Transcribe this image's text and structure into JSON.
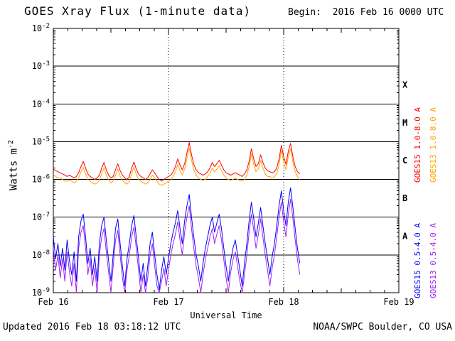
{
  "header": {
    "title": "GOES Xray Flux (1-minute data)",
    "begin_label": "Begin:  2016 Feb 16 0000 UTC"
  },
  "footer": {
    "updated": "Updated 2016 Feb 18 03:18:12 UTC",
    "source": "NOAA/SWPC Boulder, CO USA"
  },
  "chart_data": {
    "type": "line",
    "title": "GOES Xray Flux (1-minute data)",
    "xlabel": "Universal Time",
    "ylabel": "Watts m^-2",
    "ylabel_base": "Watts m",
    "ylabel_exp": "-2",
    "x_axis": {
      "days": [
        "Feb 16",
        "Feb 17",
        "Feb 18",
        "Feb 19"
      ],
      "range_days": [
        0,
        3
      ],
      "start_label": "2016 Feb 16 0000 UTC"
    },
    "y_axis": {
      "scale": "log",
      "units": "Watts m^-2",
      "exponents": [
        -2,
        -3,
        -4,
        -5,
        -6,
        -7,
        -8,
        -9
      ]
    },
    "flare_classes": [
      {
        "label": "X",
        "log_center": -3.5
      },
      {
        "label": "M",
        "log_center": -4.5
      },
      {
        "label": "C",
        "log_center": -5.5
      },
      {
        "label": "B",
        "log_center": -6.5
      },
      {
        "label": "A",
        "log_center": -7.5
      }
    ],
    "legend": [
      {
        "label": "GOES15 1.0-8.0 A",
        "color": "#ff0000"
      },
      {
        "label": "GOES13 1.0-8.0 A",
        "color": "#ffa500"
      },
      {
        "label": "GOES15 0.5-4.0 A",
        "color": "#0000ff"
      },
      {
        "label": "GOES13 0.5-4.0 A",
        "color": "#a020f0"
      }
    ],
    "series": [
      {
        "name": "GOES13 1.0-8.0 A",
        "color": "#ffa500",
        "x_start_days": 0,
        "x_step_days": 0.02,
        "values": [
          1.4e-06,
          1.2e-06,
          1.1e-06,
          1.1e-06,
          1e-06,
          9e-07,
          9e-07,
          9.5e-07,
          9e-07,
          8e-07,
          9e-07,
          1.1e-06,
          1.6e-06,
          2.1e-06,
          1.4e-06,
          1e-06,
          9e-07,
          8e-07,
          7.5e-07,
          8e-07,
          9.5e-07,
          1.4e-06,
          2e-06,
          1.3e-06,
          9.5e-07,
          8e-07,
          9e-07,
          1.3e-06,
          1.9e-06,
          1.2e-06,
          9.5e-07,
          8e-07,
          7.5e-07,
          9e-07,
          1.4e-06,
          2.1e-06,
          1.4e-06,
          1e-06,
          9e-07,
          8e-07,
          7.5e-07,
          8e-07,
          1e-06,
          1.3e-06,
          1.1e-06,
          9e-07,
          7.5e-07,
          7e-07,
          7.5e-07,
          8e-07,
          9e-07,
          9.5e-07,
          1.2e-06,
          1.6e-06,
          2.5e-06,
          1.7e-06,
          1.3e-06,
          1.9e-06,
          3.6e-06,
          6.8e-06,
          3.2e-06,
          1.8e-06,
          1.3e-06,
          1.1e-06,
          1e-06,
          9.5e-07,
          1e-06,
          1.2e-06,
          1.4e-06,
          2e-06,
          1.6e-06,
          1.9e-06,
          2.3e-06,
          1.7e-06,
          1.3e-06,
          1.1e-06,
          1e-06,
          9.5e-07,
          1e-06,
          1.1e-06,
          1e-06,
          9.5e-07,
          9e-07,
          1e-06,
          1.3e-06,
          2.2e-06,
          4.7e-06,
          2.5e-06,
          1.6e-06,
          1.9e-06,
          3.2e-06,
          2e-06,
          1.4e-06,
          1.2e-06,
          1.2e-06,
          1.1e-06,
          1.2e-06,
          1.4e-06,
          2.5e-06,
          5.8e-06,
          2.9e-06,
          1.8e-06,
          4e-06,
          6.5e-06,
          2.9e-06,
          1.6e-06,
          1.2e-06,
          1e-06
        ]
      },
      {
        "name": "GOES13 0.5-4.0 A",
        "color": "#a020f0",
        "x_start_days": 0,
        "x_step_days": 0.02,
        "values": [
          1.5e-08,
          4e-09,
          1e-08,
          2.5e-09,
          8e-09,
          2e-09,
          1.2e-08,
          3.5e-09,
          1.5e-09,
          6e-09,
          1e-09,
          1.5e-08,
          4e-08,
          6e-08,
          1.5e-08,
          3e-09,
          8e-09,
          1.5e-09,
          4.5e-09,
          1e-09,
          1e-08,
          3e-08,
          5e-08,
          1.2e-08,
          3.5e-09,
          1e-09,
          5e-09,
          2.5e-08,
          4.5e-08,
          1e-08,
          2.5e-09,
          1e-09,
          4e-09,
          1e-08,
          3e-08,
          5.5e-08,
          1.5e-08,
          4e-09,
          1e-09,
          3e-09,
          1e-09,
          2.5e-09,
          1e-08,
          2e-08,
          5e-09,
          1.5e-09,
          1e-09,
          2e-09,
          4.5e-09,
          1.5e-09,
          4e-09,
          1e-08,
          2e-08,
          3.5e-08,
          7.5e-08,
          2.5e-08,
          1e-08,
          4e-08,
          1e-07,
          2e-07,
          5e-08,
          1.5e-08,
          5e-09,
          2.5e-09,
          1e-09,
          3e-09,
          7.5e-09,
          1.5e-08,
          3e-08,
          5e-08,
          2e-08,
          3.5e-08,
          6e-08,
          2.5e-08,
          7.5e-09,
          2.5e-09,
          1e-09,
          3.5e-09,
          7.5e-09,
          1.2e-08,
          5e-09,
          2e-09,
          1e-09,
          3e-09,
          1e-08,
          4e-08,
          1.2e-07,
          4.5e-08,
          1.5e-08,
          3.5e-08,
          9e-08,
          3e-08,
          1e-08,
          4e-09,
          1.5e-09,
          4.5e-09,
          1e-08,
          3e-08,
          1e-07,
          2.5e-07,
          7.5e-08,
          3e-08,
          1.2e-07,
          3e-07,
          9e-08,
          2.5e-08,
          7.5e-09,
          3e-09
        ]
      },
      {
        "name": "GOES15 1.0-8.0 A",
        "color": "#ff0000",
        "x_start_days": 0,
        "x_step_days": 0.02,
        "values": [
          1.9e-06,
          1.7e-06,
          1.6e-06,
          1.5e-06,
          1.4e-06,
          1.3e-06,
          1.2e-06,
          1.3e-06,
          1.2e-06,
          1.1e-06,
          1.2e-06,
          1.5e-06,
          2.2e-06,
          3e-06,
          2e-06,
          1.4e-06,
          1.2e-06,
          1.1e-06,
          1e-06,
          1.1e-06,
          1.3e-06,
          2e-06,
          2.8e-06,
          1.8e-06,
          1.3e-06,
          1.1e-06,
          1.2e-06,
          1.8e-06,
          2.6e-06,
          1.7e-06,
          1.3e-06,
          1.1e-06,
          1e-06,
          1.2e-06,
          2e-06,
          2.9e-06,
          1.9e-06,
          1.4e-06,
          1.2e-06,
          1.1e-06,
          1e-06,
          1.1e-06,
          1.4e-06,
          1.8e-06,
          1.5e-06,
          1.2e-06,
          1e-06,
          9e-07,
          1e-06,
          1.1e-06,
          1.2e-06,
          1.3e-06,
          1.6e-06,
          2.2e-06,
          3.5e-06,
          2.4e-06,
          1.8e-06,
          2.6e-06,
          5e-06,
          9.5e-06,
          4.5e-06,
          2.5e-06,
          1.8e-06,
          1.5e-06,
          1.4e-06,
          1.3e-06,
          1.4e-06,
          1.6e-06,
          2e-06,
          2.8e-06,
          2.2e-06,
          2.6e-06,
          3.2e-06,
          2.4e-06,
          1.8e-06,
          1.5e-06,
          1.4e-06,
          1.3e-06,
          1.4e-06,
          1.5e-06,
          1.4e-06,
          1.3e-06,
          1.2e-06,
          1.4e-06,
          1.8e-06,
          3e-06,
          6.5e-06,
          3.5e-06,
          2.2e-06,
          2.6e-06,
          4.5e-06,
          2.8e-06,
          2e-06,
          1.7e-06,
          1.6e-06,
          1.5e-06,
          1.6e-06,
          2e-06,
          3.5e-06,
          8e-06,
          4e-06,
          2.5e-06,
          5.5e-06,
          9e-06,
          4e-06,
          2.2e-06,
          1.6e-06,
          1.4e-06
        ]
      },
      {
        "name": "GOES15 0.5-4.0 A",
        "color": "#0000ff",
        "x_start_days": 0,
        "x_step_days": 0.02,
        "values": [
          3e-08,
          8e-09,
          2e-08,
          5e-09,
          1.5e-08,
          4e-09,
          2.5e-08,
          7e-09,
          3e-09,
          1.2e-08,
          2e-09,
          3e-08,
          8e-08,
          1.2e-07,
          3e-08,
          6e-09,
          1.5e-08,
          3e-09,
          9e-09,
          2e-09,
          2e-08,
          6e-08,
          1e-07,
          2.5e-08,
          7e-09,
          2e-09,
          1e-08,
          5e-08,
          9e-08,
          2e-08,
          5e-09,
          1.5e-09,
          8e-09,
          2e-08,
          6e-08,
          1.1e-07,
          3e-08,
          8e-09,
          2e-09,
          6e-09,
          1.5e-09,
          5e-09,
          2e-08,
          4e-08,
          1e-08,
          3e-09,
          1.2e-09,
          4e-09,
          9e-09,
          3e-09,
          8e-09,
          2e-08,
          4e-08,
          7e-08,
          1.5e-07,
          5e-08,
          2e-08,
          8e-08,
          2e-07,
          4e-07,
          1e-07,
          3e-08,
          1e-08,
          5e-09,
          2e-09,
          6e-09,
          1.5e-08,
          3e-08,
          6e-08,
          1e-07,
          4e-08,
          7e-08,
          1.2e-07,
          5e-08,
          1.5e-08,
          5e-09,
          2e-09,
          7e-09,
          1.5e-08,
          2.5e-08,
          1e-08,
          4e-09,
          1.5e-09,
          6e-09,
          2e-08,
          8e-08,
          2.5e-07,
          9e-08,
          3e-08,
          7e-08,
          1.8e-07,
          6e-08,
          2e-08,
          8e-09,
          3e-09,
          9e-09,
          2e-08,
          6e-08,
          2e-07,
          5e-07,
          1.5e-07,
          6e-08,
          2.5e-07,
          6e-07,
          1.8e-07,
          5e-08,
          1.5e-08,
          6e-09
        ]
      }
    ]
  }
}
